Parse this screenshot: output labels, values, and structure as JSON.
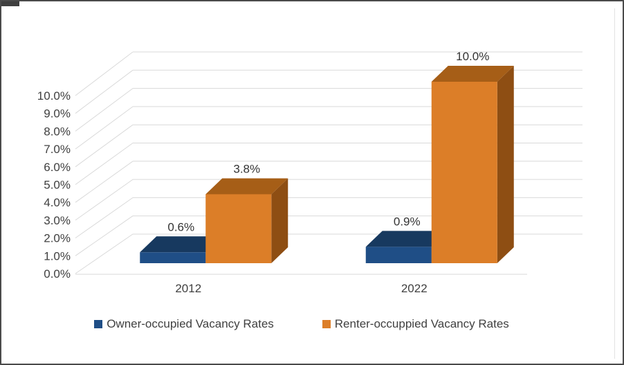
{
  "chart_data": {
    "type": "bar",
    "variant": "3d-clustered-column",
    "title": "",
    "xlabel": "",
    "ylabel": "",
    "categories": [
      "2012",
      "2022"
    ],
    "series": [
      {
        "name": "Owner-occupied Vacancy Rates",
        "values": [
          0.6,
          0.9
        ],
        "labels": [
          "0.6%",
          "0.9%"
        ],
        "color": "#1F4E86",
        "color_top": "#17395F",
        "color_side": "#122D4F"
      },
      {
        "name": "Renter-occuppied Vacancy Rates",
        "values": [
          3.8,
          10.0
        ],
        "labels": [
          "3.8%",
          "10.0%"
        ],
        "color": "#DC7E28",
        "color_top": "#A65E17",
        "color_side": "#8E4E13"
      }
    ],
    "ylim": [
      0,
      10
    ],
    "ytick_step": 1,
    "ytick_labels": [
      "0.0%",
      "1.0%",
      "2.0%",
      "3.0%",
      "4.0%",
      "5.0%",
      "6.0%",
      "7.0%",
      "8.0%",
      "9.0%",
      "10.0%"
    ],
    "grid": true,
    "gridline_color": "#D9D9D9",
    "text_color": "#404040",
    "legend_position": "bottom"
  }
}
